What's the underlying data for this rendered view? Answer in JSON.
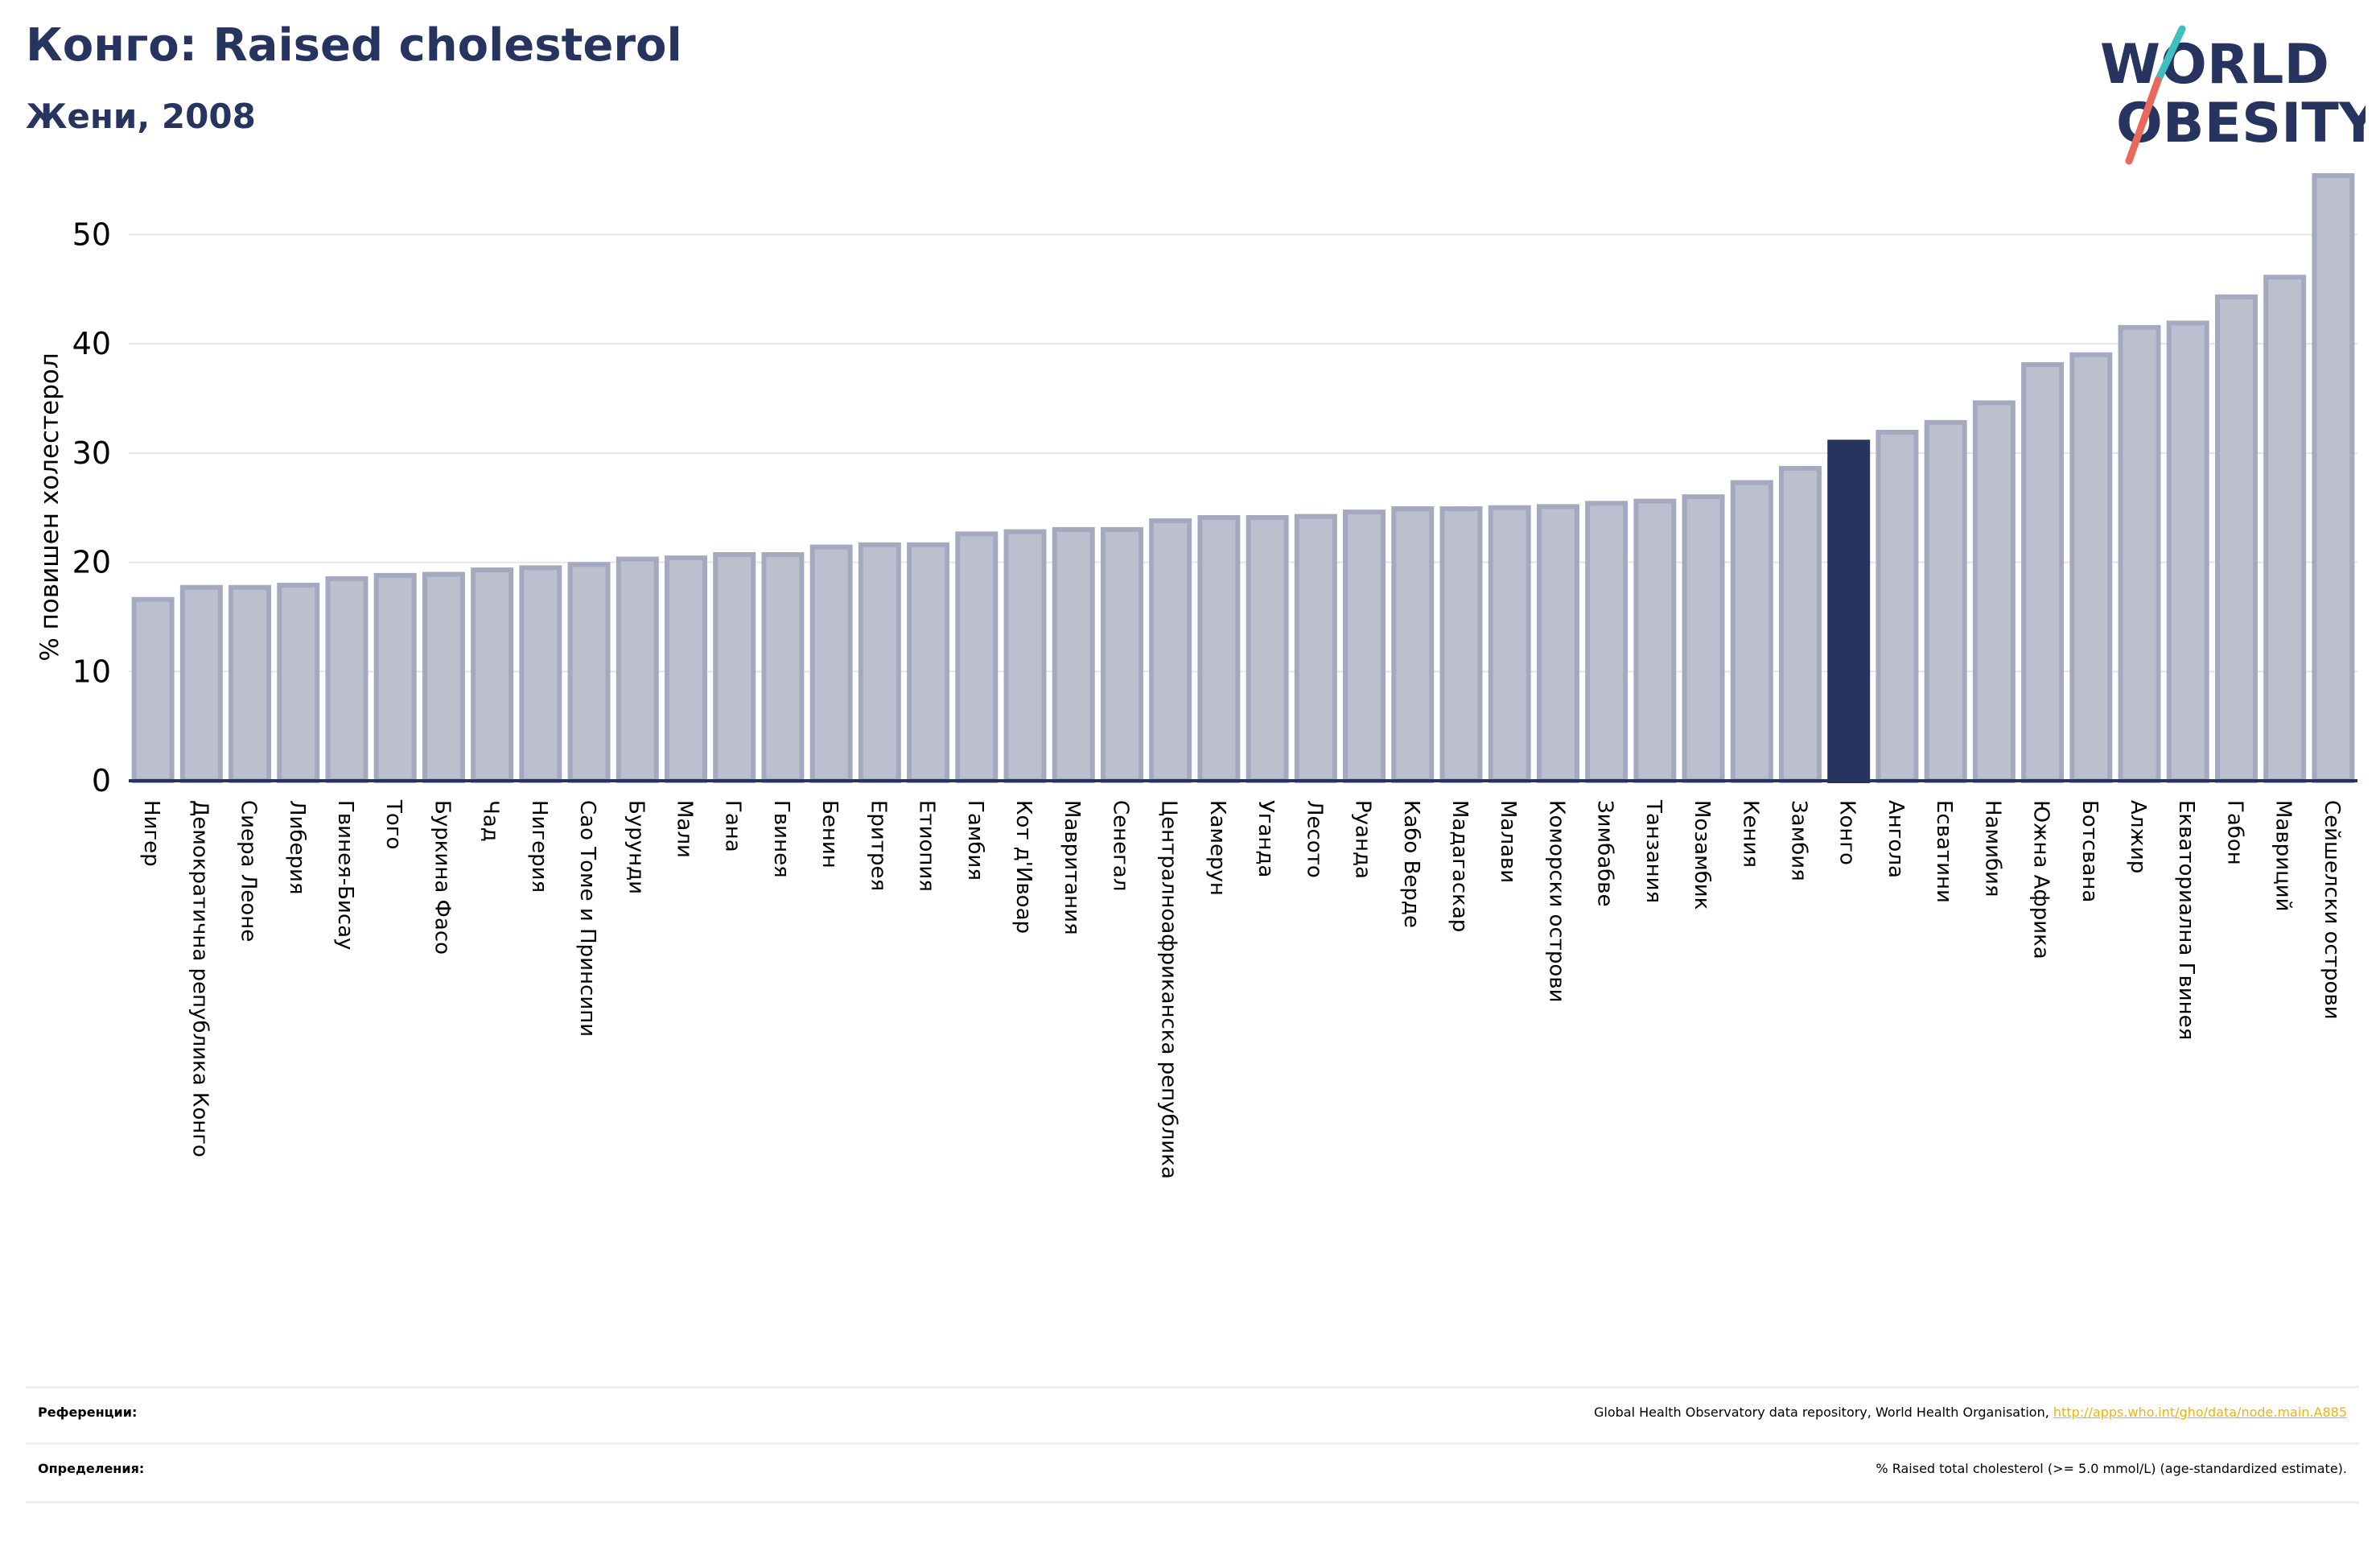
{
  "header": {
    "title": "Конго: Raised cholesterol",
    "subtitle": "Жени, 2008"
  },
  "logo": {
    "line1": "WORLD",
    "line2": "OBESITY",
    "colors": {
      "text": "#283460",
      "slash_top": "#3fbfbf",
      "slash_bottom": "#e86a5c"
    }
  },
  "colors": {
    "bar_fill": "#bcc0ce",
    "bar_stroke": "#a4a9c0",
    "highlight": "#283460",
    "grid": "#e5e5e5",
    "axis": "#283460"
  },
  "chart_data": {
    "type": "bar",
    "title": "",
    "xlabel": "",
    "ylabel": "% повишен холестерол",
    "ylim": [
      0,
      56
    ],
    "yticks": [
      0,
      10,
      20,
      30,
      40,
      50
    ],
    "grid": true,
    "highlight": "Конго",
    "categories": [
      "Нигер",
      "Демократична република Конго",
      "Сиера Леоне",
      "Либерия",
      "Гвинея-Бисау",
      "Того",
      "Буркина Фасо",
      "Чад",
      "Нигерия",
      "Сао Томе и Принсипи",
      "Бурунди",
      "Мали",
      "Гана",
      "Гвинея",
      "Бенин",
      "Еритрея",
      "Етиопия",
      "Гамбия",
      "Кот д'Ивоар",
      "Мавритания",
      "Сенегал",
      "Централноафриканска република",
      "Камерун",
      "Уганда",
      "Лесото",
      "Руанда",
      "Кабо Верде",
      "Мадагаскар",
      "Малави",
      "Коморски острови",
      "Зимбабве",
      "Танзания",
      "Мозамбик",
      "Кения",
      "Замбия",
      "Конго",
      "Ангола",
      "Есватини",
      "Намибия",
      "Южна Африка",
      "Ботсвана",
      "Алжир",
      "Екваториална Гвинея",
      "Габон",
      "Мавриций",
      "Сейшелски острови"
    ],
    "values": [
      16.6,
      17.7,
      17.7,
      17.9,
      18.5,
      18.8,
      18.9,
      19.3,
      19.5,
      19.8,
      20.3,
      20.4,
      20.7,
      20.7,
      21.4,
      21.6,
      21.6,
      22.6,
      22.8,
      23.0,
      23.0,
      23.8,
      24.1,
      24.1,
      24.2,
      24.6,
      24.9,
      24.9,
      25.0,
      25.1,
      25.4,
      25.6,
      26.0,
      27.3,
      28.6,
      31.0,
      31.9,
      32.8,
      34.6,
      38.1,
      39.0,
      41.5,
      41.9,
      44.3,
      46.1,
      55.4
    ]
  },
  "footer": {
    "references_label": "Референции:",
    "references_text": "Global Health Observatory data repository, World Health Organisation, ",
    "references_link": "http://apps.who.int/gho/data/node.main.A885",
    "definitions_label": "Определения:",
    "definitions_text": "% Raised total cholesterol (>= 5.0 mmol/L) (age-standardized estimate)."
  }
}
